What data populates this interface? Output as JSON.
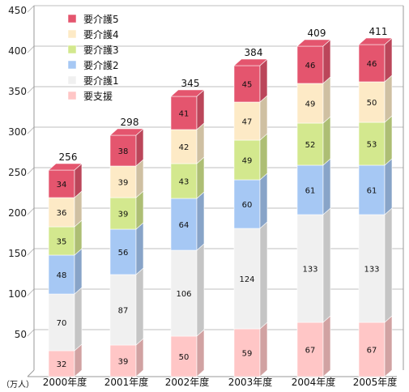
{
  "chart_data": {
    "type": "bar",
    "stacked": true,
    "categories": [
      "2000年度",
      "2001年度",
      "2002年度",
      "2003年度",
      "2004年度",
      "2005年度"
    ],
    "series": [
      {
        "name": "要支援",
        "values": [
          32,
          39,
          50,
          59,
          67,
          67
        ],
        "color": "#ffc6c6"
      },
      {
        "name": "要介護1",
        "values": [
          70,
          87,
          106,
          124,
          133,
          133
        ],
        "color": "#f0f0f0"
      },
      {
        "name": "要介護2",
        "values": [
          48,
          56,
          64,
          60,
          61,
          61
        ],
        "color": "#a6c8f4"
      },
      {
        "name": "要介護3",
        "values": [
          35,
          39,
          43,
          49,
          52,
          53
        ],
        "color": "#d3e88e"
      },
      {
        "name": "要介護4",
        "values": [
          36,
          39,
          42,
          47,
          49,
          50
        ],
        "color": "#fdeac6"
      },
      {
        "name": "要介護5",
        "values": [
          34,
          38,
          41,
          45,
          46,
          46
        ],
        "color": "#e4556e"
      }
    ],
    "totals": [
      "256",
      "298",
      "345",
      "384",
      "409",
      "411"
    ],
    "y_ticks": [
      "450",
      "400",
      "350",
      "300",
      "250",
      "200",
      "150",
      "100",
      "50"
    ],
    "ylim": [
      0,
      450
    ],
    "unit_label": "（万人）",
    "legend_position": "top-left",
    "grid": true
  }
}
